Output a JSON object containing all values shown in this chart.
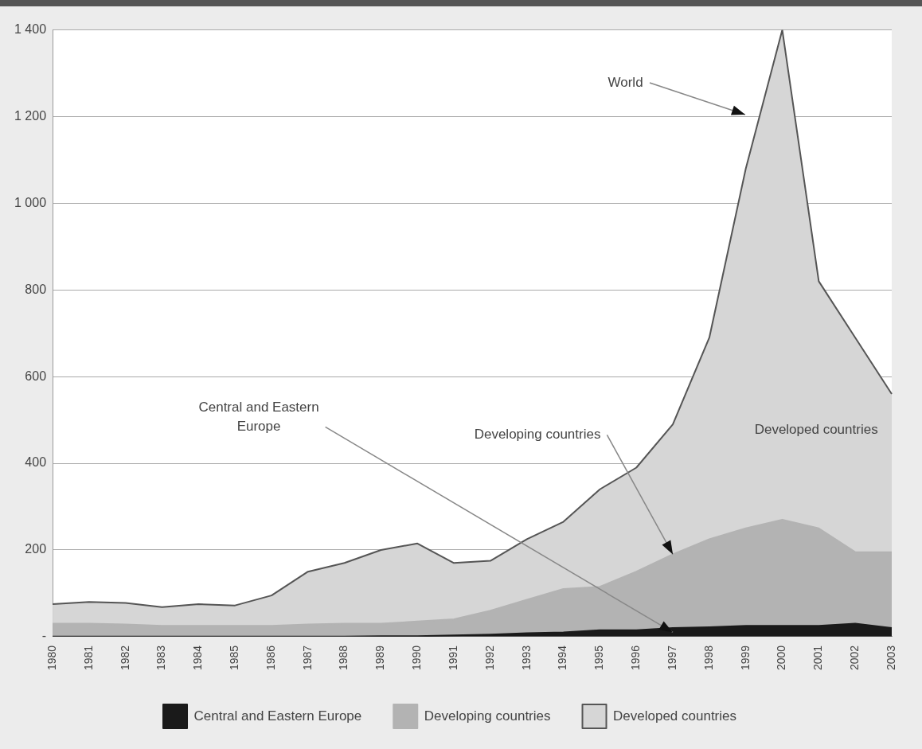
{
  "chart_data": {
    "type": "area",
    "stacked": true,
    "categories": [
      "1980",
      "1981",
      "1982",
      "1983",
      "1984",
      "1985",
      "1986",
      "1987",
      "1988",
      "1989",
      "1990",
      "1991",
      "1992",
      "1993",
      "1994",
      "1995",
      "1996",
      "1997",
      "1998",
      "1999",
      "2000",
      "2001",
      "2002",
      "2003"
    ],
    "series": [
      {
        "name": "Central and Eastern Europe",
        "color": "#1a1a1a",
        "values": [
          0,
          0,
          0,
          0,
          0,
          0,
          0,
          0,
          0,
          1,
          1,
          3,
          5,
          8,
          10,
          15,
          15,
          20,
          22,
          25,
          25,
          25,
          30,
          20
        ]
      },
      {
        "name": "Developing countries",
        "color": "#b3b3b3",
        "values": [
          30,
          30,
          28,
          25,
          25,
          25,
          25,
          28,
          30,
          29,
          34,
          37,
          55,
          77,
          100,
          100,
          135,
          170,
          203,
          225,
          245,
          225,
          165,
          175
        ]
      },
      {
        "name": "Developed countries",
        "color": "#d6d6d6",
        "values": [
          45,
          50,
          50,
          43,
          50,
          47,
          70,
          122,
          140,
          170,
          180,
          130,
          115,
          140,
          155,
          225,
          240,
          300,
          465,
          830,
          1130,
          570,
          495,
          365
        ]
      }
    ],
    "ylim": [
      0,
      1400
    ],
    "yticks": [
      {
        "value": 0,
        "label": "-"
      },
      200,
      400,
      600,
      800,
      {
        "value": 1000,
        "label": "1 000"
      },
      {
        "value": 1200,
        "label": "1 200"
      },
      {
        "value": 1400,
        "label": "1 400"
      }
    ],
    "grid": "y",
    "legend": "bottom",
    "annotations": [
      "World",
      {
        "text": "Developing countries",
        "x": "1997",
        "y": 190
      },
      {
        "text": "Central and Eastern Europe",
        "x": "1997",
        "y": 10
      },
      "Developed countries"
    ]
  }
}
